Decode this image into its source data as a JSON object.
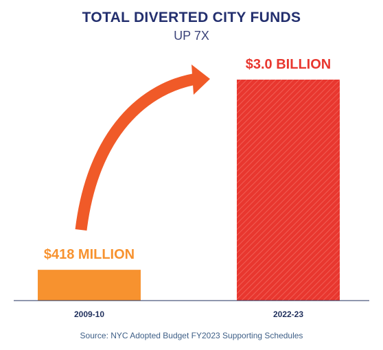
{
  "chart_data": {
    "type": "bar",
    "title": "TOTAL DIVERTED CITY FUNDS",
    "subtitle": "UP 7X",
    "categories": [
      "2009-10",
      "2022-23"
    ],
    "values": [
      0.418,
      3.0
    ],
    "unit": "billion USD",
    "data_labels": [
      "$418 MILLION",
      "$3.0 BILLION"
    ],
    "colors": [
      "#f7922f",
      "#e8372f"
    ],
    "arrow_color": "#f05a28",
    "ylim": [
      0,
      3.0
    ],
    "grid": false,
    "source": "Source: NYC Adopted Budget FY2023 Supporting Schedules"
  }
}
